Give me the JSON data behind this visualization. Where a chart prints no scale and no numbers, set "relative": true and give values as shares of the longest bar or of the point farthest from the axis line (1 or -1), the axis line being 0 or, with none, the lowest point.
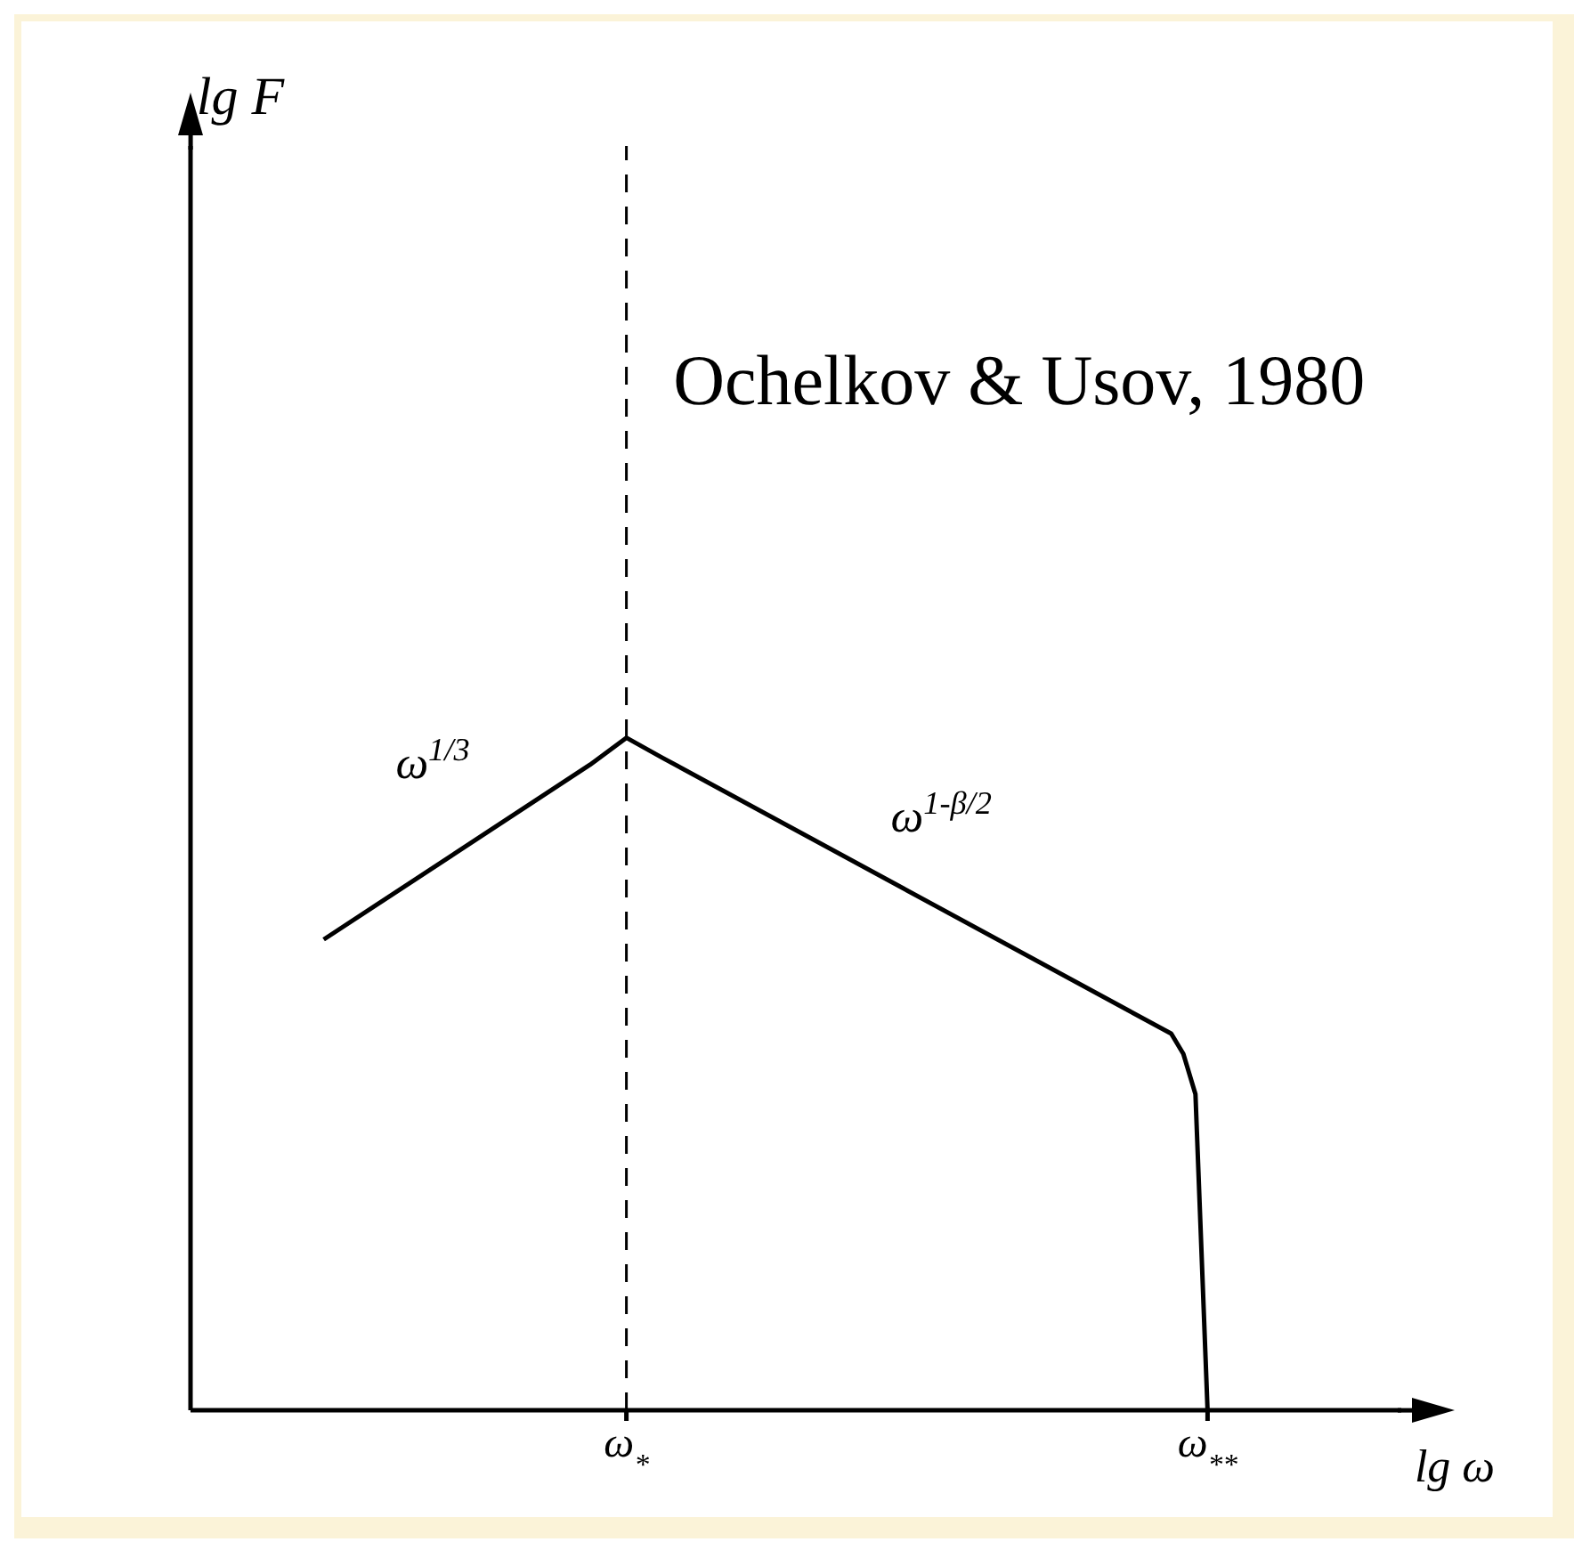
{
  "chart_data": {
    "type": "line",
    "relative": true,
    "xlabel": "lg ω",
    "tick_labels": "x",
    "marker": "none",
    "line_style": "solid",
    "categories": [
      null,
      null,
      null,
      null,
      null,
      null,
      null,
      null,
      null,
      null,
      null,
      null,
      null,
      null,
      null,
      null,
      null,
      null,
      null,
      null,
      null,
      null,
      null,
      null,
      null,
      null,
      null,
      null,
      null,
      null,
      null,
      null,
      null,
      null,
      null,
      null,
      "ω$_{*}$",
      null,
      null,
      null,
      null,
      null,
      null,
      null,
      null,
      null,
      null,
      null,
      null,
      null,
      null,
      null,
      null,
      null,
      null,
      null,
      null,
      null,
      null,
      null,
      null,
      null,
      null,
      null,
      null,
      null,
      null,
      null,
      null,
      null,
      null,
      null,
      null,
      null,
      null,
      null,
      null,
      null,
      null,
      null,
      null,
      null,
      null,
      null,
      "ω$_{**}$",
      null,
      null,
      null,
      null,
      null,
      null,
      null,
      null,
      null,
      null,
      null,
      null,
      null,
      null,
      null,
      null
    ],
    "series": [
      {
        "color": "#000000",
        "values": [
          null,
          null,
          null,
          null,
          null,
          null,
          null,
          null,
          null,
          null,
          null,
          0.7,
          null,
          null,
          null,
          null,
          null,
          null,
          null,
          null,
          null,
          null,
          null,
          null,
          null,
          null,
          null,
          null,
          null,
          null,
          null,
          null,
          null,
          0.96,
          null,
          null,
          1.0,
          null,
          null,
          0.97,
          null,
          null,
          null,
          null,
          null,
          null,
          null,
          null,
          null,
          null,
          null,
          null,
          null,
          null,
          null,
          null,
          null,
          null,
          null,
          null,
          null,
          null,
          null,
          null,
          null,
          null,
          null,
          null,
          null,
          null,
          null,
          null,
          null,
          null,
          null,
          null,
          null,
          null,
          null,
          null,
          null,
          0.56,
          0.53,
          0.47,
          0,
          null,
          null,
          null,
          null,
          null,
          null,
          null,
          null,
          null,
          null,
          null,
          null,
          null,
          null,
          null,
          null
        ]
      }
    ],
    "ref_lines": [
      {
        "axis": "x",
        "value": "ω$_{*}$",
        "line_style": "dashed",
        "color": "#000000"
      }
    ],
    "annotations": [
      "Ochelkov & Usov, 1980",
      "ω$^{1/3}$",
      "ω$^{1-β/2}$",
      "lg F"
    ]
  }
}
